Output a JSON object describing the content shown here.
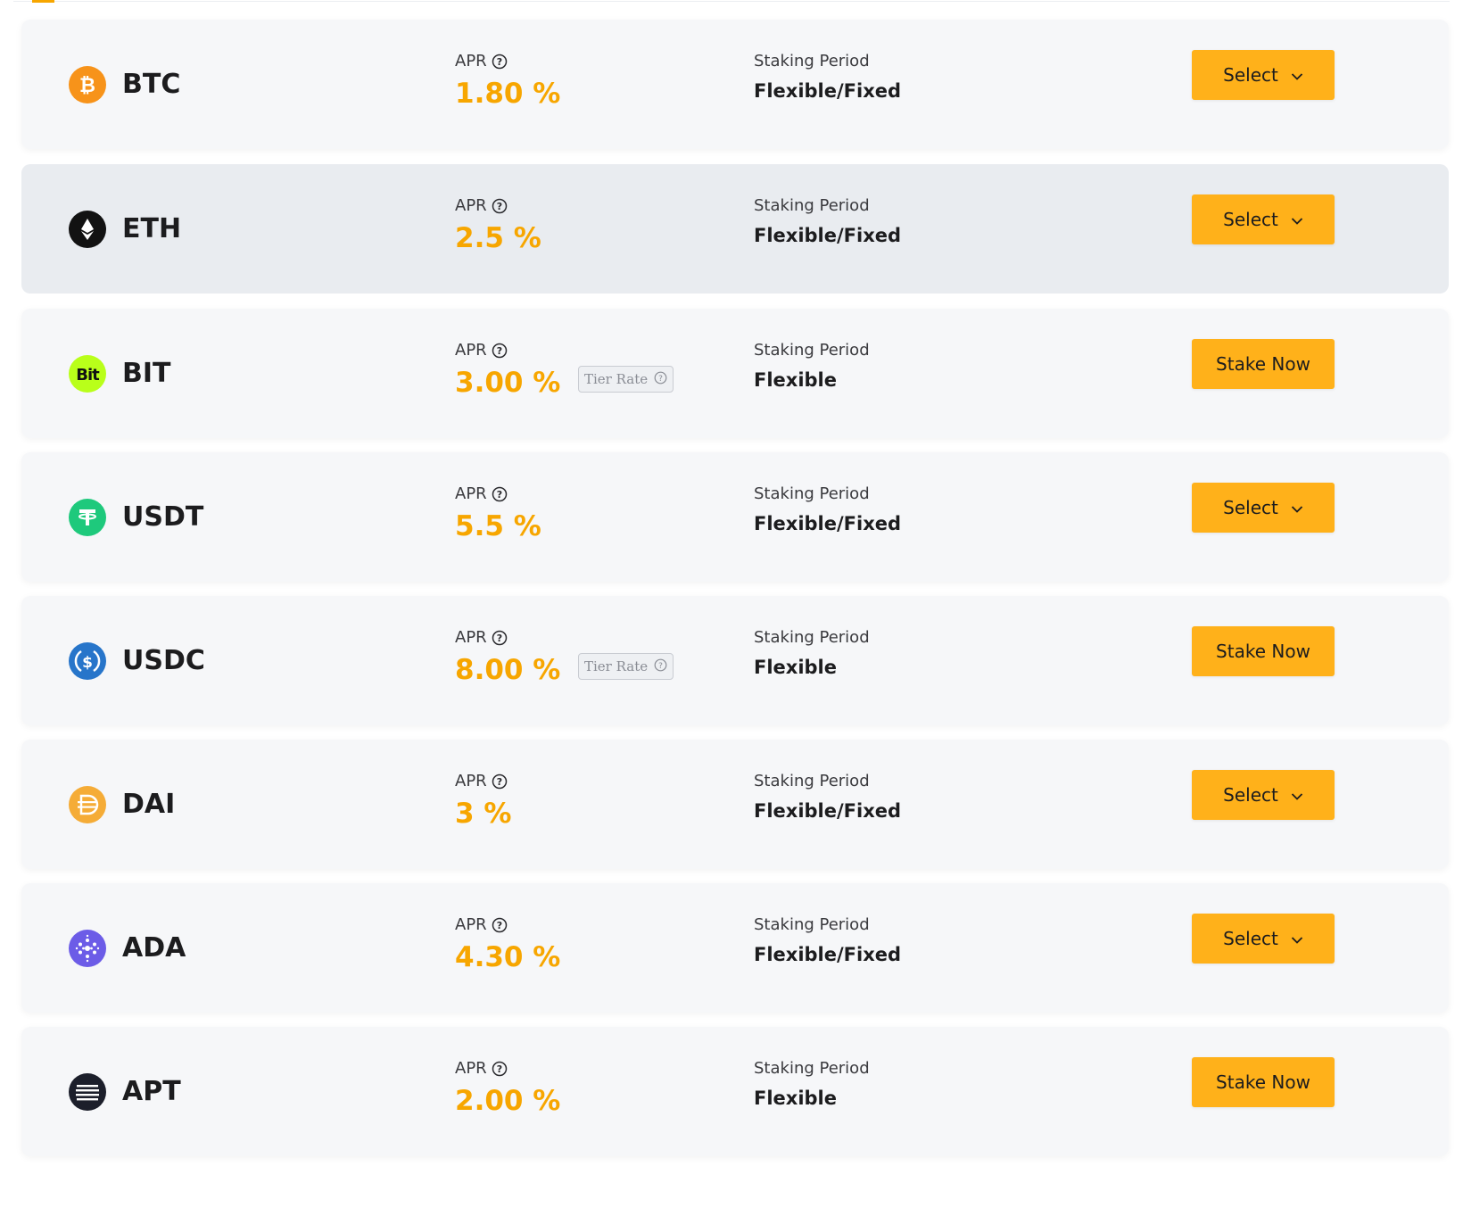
{
  "colors": {
    "accent": "#f7a600",
    "button": "#ffb11a",
    "row_bg": "#f6f7f9",
    "row_hover_bg": "#e9ecf0"
  },
  "labels": {
    "apr": "APR",
    "staking_period": "Staking Period",
    "tier_rate": "Tier Rate"
  },
  "products": [
    {
      "coin": "BTC",
      "icon": "btc-icon",
      "apr": "1.80 %",
      "period": "Flexible/Fixed",
      "action": "Select",
      "has_dropdown": true,
      "tier_rate": false
    },
    {
      "coin": "ETH",
      "icon": "eth-icon",
      "apr": "2.5 %",
      "period": "Flexible/Fixed",
      "action": "Select",
      "has_dropdown": true,
      "tier_rate": false
    },
    {
      "coin": "BIT",
      "icon": "bit-icon",
      "apr": "3.00 %",
      "period": "Flexible",
      "action": "Stake Now",
      "has_dropdown": false,
      "tier_rate": true
    },
    {
      "coin": "USDT",
      "icon": "usdt-icon",
      "apr": "5.5 %",
      "period": "Flexible/Fixed",
      "action": "Select",
      "has_dropdown": true,
      "tier_rate": false
    },
    {
      "coin": "USDC",
      "icon": "usdc-icon",
      "apr": "8.00 %",
      "period": "Flexible",
      "action": "Stake Now",
      "has_dropdown": false,
      "tier_rate": true
    },
    {
      "coin": "DAI",
      "icon": "dai-icon",
      "apr": "3 %",
      "period": "Flexible/Fixed",
      "action": "Select",
      "has_dropdown": true,
      "tier_rate": false
    },
    {
      "coin": "ADA",
      "icon": "ada-icon",
      "apr": "4.30 %",
      "period": "Flexible/Fixed",
      "action": "Select",
      "has_dropdown": true,
      "tier_rate": false
    },
    {
      "coin": "APT",
      "icon": "apt-icon",
      "apr": "2.00 %",
      "period": "Flexible",
      "action": "Stake Now",
      "has_dropdown": false,
      "tier_rate": false
    }
  ]
}
